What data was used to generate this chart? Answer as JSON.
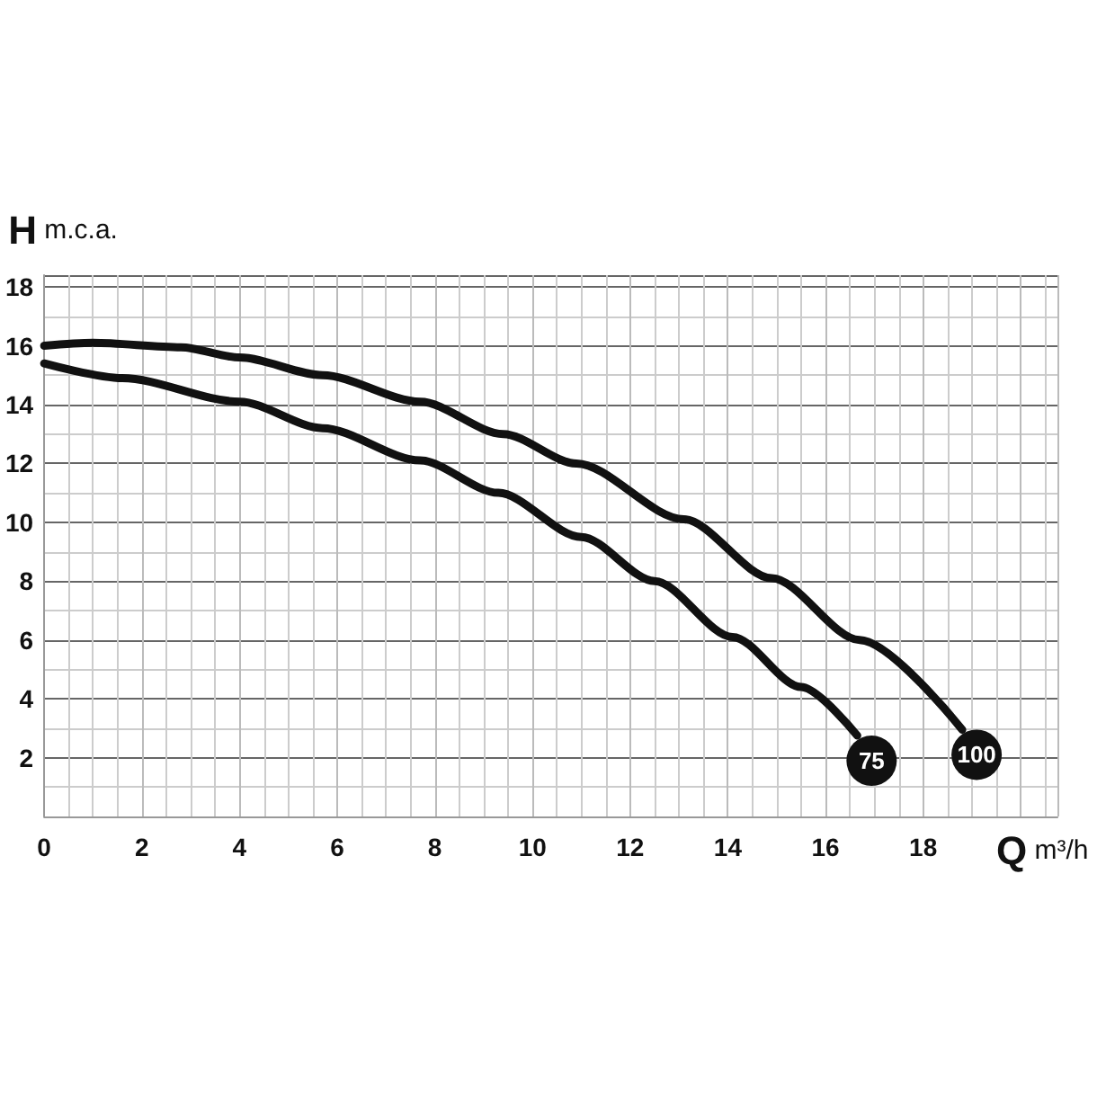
{
  "chart_data": {
    "type": "line",
    "xlabel": "Q m³/h",
    "ylabel": "H m.c.a.",
    "xlim": [
      0,
      20.75
    ],
    "xticks": [
      0,
      2,
      4,
      6,
      8,
      10,
      12,
      14,
      16,
      18
    ],
    "ylim": [
      0,
      18.4
    ],
    "yticks": [
      2,
      4,
      6,
      8,
      10,
      12,
      14,
      16,
      18
    ],
    "grid": true,
    "legend": false,
    "marker": "none",
    "line_style": "solid",
    "series": [
      {
        "name": "75",
        "color": "#111111",
        "x": [
          0,
          1.6,
          4,
          5.7,
          7.7,
          9.3,
          11,
          12.5,
          14.1,
          15.5,
          16.65
        ],
        "values": [
          15.4,
          14.9,
          14.1,
          13.2,
          12.1,
          11,
          9.5,
          8,
          6.1,
          4.4,
          2.75
        ]
      },
      {
        "name": "100",
        "color": "#111111",
        "x": [
          0,
          1,
          2.8,
          4,
          5.7,
          7.7,
          9.4,
          10.9,
          13.1,
          14.9,
          16.7,
          18.8
        ],
        "values": [
          16,
          16.1,
          15.95,
          15.6,
          15,
          14.1,
          13,
          12,
          10.1,
          8.1,
          6,
          2.95
        ]
      }
    ]
  }
}
